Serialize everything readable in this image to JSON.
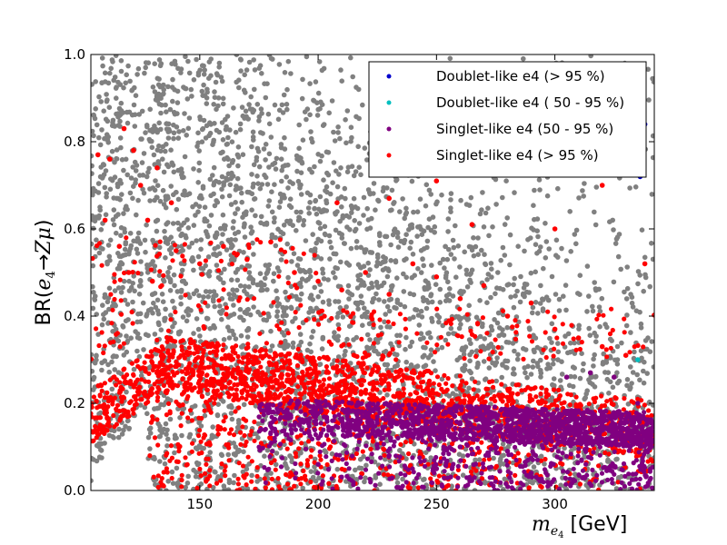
{
  "chart_data": {
    "type": "scatter",
    "xlabel": "m_e4 [GeV]",
    "ylabel": "BR(e4 → Zμ)",
    "xlim": [
      104,
      342
    ],
    "ylim": [
      0,
      1
    ],
    "xticks": [
      "150",
      "200",
      "250",
      "300"
    ],
    "yticks": [
      "0.0",
      "0.2",
      "0.4",
      "0.6",
      "0.8",
      "1.0"
    ],
    "grid": false,
    "legend_position": "top-right",
    "background_points_color": "#808080",
    "series": [
      {
        "name": "Doublet-like e4 (> 95 %)",
        "color": "#0000cc",
        "points": [
          [
            338,
            0.84
          ],
          [
            336,
            0.72
          ]
        ]
      },
      {
        "name": "Doublet-like e4 ( 50 - 95 %)",
        "color": "#00bfbf",
        "points": [
          [
            335,
            0.3
          ]
        ]
      },
      {
        "name": "Singlet-like e4 (50 - 95 %)",
        "color": "#800080",
        "points": [
          [
            180,
            0.18
          ],
          [
            190,
            0.15
          ],
          [
            200,
            0.12
          ],
          [
            210,
            0.16
          ],
          [
            220,
            0.14
          ],
          [
            230,
            0.17
          ],
          [
            240,
            0.15
          ],
          [
            250,
            0.16
          ],
          [
            260,
            0.14
          ],
          [
            270,
            0.15
          ],
          [
            280,
            0.16
          ],
          [
            290,
            0.15
          ],
          [
            300,
            0.14
          ],
          [
            310,
            0.15
          ],
          [
            320,
            0.16
          ],
          [
            330,
            0.14
          ],
          [
            335,
            0.2
          ],
          [
            325,
            0.26
          ],
          [
            315,
            0.27
          ],
          [
            305,
            0.26
          ],
          [
            260,
            0.1
          ],
          [
            280,
            0.09
          ],
          [
            300,
            0.1
          ],
          [
            320,
            0.11
          ],
          [
            230,
            0.08
          ],
          [
            200,
            0.06
          ],
          [
            250,
            0.05
          ],
          [
            290,
            0.04
          ]
        ]
      },
      {
        "name": "Singlet-like e4 (> 95 %)",
        "color": "#ff0000",
        "points": [
          [
            107,
            0.77
          ],
          [
            112,
            0.76
          ],
          [
            118,
            0.83
          ],
          [
            122,
            0.78
          ],
          [
            125,
            0.7
          ],
          [
            128,
            0.62
          ],
          [
            132,
            0.74
          ],
          [
            138,
            0.66
          ],
          [
            110,
            0.62
          ],
          [
            116,
            0.56
          ],
          [
            120,
            0.5
          ],
          [
            130,
            0.48
          ],
          [
            140,
            0.55
          ],
          [
            150,
            0.52
          ],
          [
            160,
            0.56
          ],
          [
            170,
            0.53
          ],
          [
            180,
            0.57
          ],
          [
            190,
            0.5
          ],
          [
            200,
            0.48
          ],
          [
            210,
            0.46
          ],
          [
            220,
            0.5
          ],
          [
            230,
            0.45
          ],
          [
            240,
            0.52
          ],
          [
            250,
            0.49
          ],
          [
            260,
            0.44
          ],
          [
            270,
            0.47
          ],
          [
            280,
            0.4
          ],
          [
            290,
            0.43
          ],
          [
            300,
            0.37
          ],
          [
            310,
            0.35
          ],
          [
            320,
            0.33
          ],
          [
            330,
            0.31
          ],
          [
            338,
            0.52
          ],
          [
            230,
            0.67
          ],
          [
            250,
            0.71
          ],
          [
            275,
            0.76
          ],
          [
            300,
            0.6
          ],
          [
            320,
            0.7
          ],
          [
            208,
            0.66
          ],
          [
            265,
            0.61
          ]
        ]
      }
    ]
  }
}
